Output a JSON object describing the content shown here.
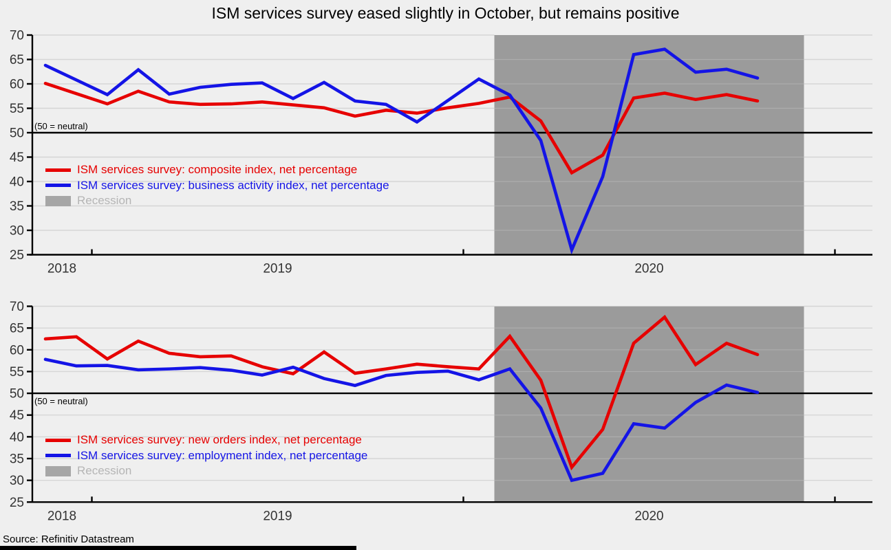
{
  "title": "ISM services survey eased slightly in October, but remains positive",
  "source": "Source: Refinitiv Datastream",
  "colors": {
    "red": "#e60000",
    "blue": "#1414e6",
    "recession_band": "#9b9b9b",
    "recession_swatch": "#a6a6a6",
    "recession_text": "#b5b5b5",
    "background": "#efefef",
    "grid": "#d6d6d6",
    "grid_in_band": "#adadad",
    "axis": "#000000",
    "tick_text": "#333333"
  },
  "chart_data": [
    {
      "type": "line",
      "title": "",
      "neutral_note": "(50 = neutral)",
      "recession_label": "Recession",
      "x": [
        "Nov 2018",
        "Dec 2018",
        "Jan 2019",
        "Feb 2019",
        "Mar 2019",
        "Apr 2019",
        "May 2019",
        "Jun 2019",
        "Jul 2019",
        "Aug 2019",
        "Sep 2019",
        "Oct 2019",
        "Nov 2019",
        "Dec 2019",
        "Jan 2020",
        "Feb 2020",
        "Mar 2020",
        "Apr 2020",
        "May 2020",
        "Jun 2020",
        "Jul 2020",
        "Aug 2020",
        "Sep 2020",
        "Oct 2020"
      ],
      "x_year_labels": [
        "2018",
        "2019",
        "2020"
      ],
      "yticks": [
        25,
        30,
        35,
        40,
        45,
        50,
        55,
        60,
        65,
        70
      ],
      "ylim": [
        25,
        70
      ],
      "grid": true,
      "legend_position": "upper-left-inside",
      "recession_span": [
        "Feb 2020",
        "Nov 2020"
      ],
      "series": [
        {
          "name": "ISM services survey: composite index, net percentage",
          "color_key": "red",
          "values": [
            60.1,
            58.0,
            55.9,
            58.5,
            56.3,
            55.8,
            55.9,
            56.3,
            55.7,
            55.1,
            53.4,
            54.6,
            54.0,
            55.1,
            56.0,
            57.3,
            52.4,
            41.8,
            45.4,
            57.1,
            58.1,
            56.8,
            57.8,
            56.5
          ]
        },
        {
          "name": "ISM services survey: business activity index, net percentage",
          "color_key": "blue",
          "values": [
            63.8,
            60.8,
            57.8,
            62.9,
            57.9,
            59.3,
            59.9,
            60.2,
            57.0,
            60.3,
            56.5,
            55.8,
            52.2,
            56.6,
            61.0,
            57.7,
            48.4,
            26.0,
            41.0,
            66.0,
            67.1,
            62.4,
            63.0,
            61.2
          ]
        }
      ]
    },
    {
      "type": "line",
      "title": "",
      "neutral_note": "(50 = neutral)",
      "recession_label": "Recession",
      "x": [
        "Nov 2018",
        "Dec 2018",
        "Jan 2019",
        "Feb 2019",
        "Mar 2019",
        "Apr 2019",
        "May 2019",
        "Jun 2019",
        "Jul 2019",
        "Aug 2019",
        "Sep 2019",
        "Oct 2019",
        "Nov 2019",
        "Dec 2019",
        "Jan 2020",
        "Feb 2020",
        "Mar 2020",
        "Apr 2020",
        "May 2020",
        "Jun 2020",
        "Jul 2020",
        "Aug 2020",
        "Sep 2020",
        "Oct 2020"
      ],
      "x_year_labels": [
        "2018",
        "2019",
        "2020"
      ],
      "yticks": [
        25,
        30,
        35,
        40,
        45,
        50,
        55,
        60,
        65,
        70
      ],
      "ylim": [
        25,
        70
      ],
      "grid": true,
      "legend_position": "upper-left-inside",
      "recession_span": [
        "Feb 2020",
        "Nov 2020"
      ],
      "series": [
        {
          "name": "ISM services survey: new orders index, net percentage",
          "color_key": "red",
          "values": [
            62.5,
            63.0,
            57.9,
            62.0,
            59.2,
            58.4,
            58.6,
            56.1,
            54.5,
            59.5,
            54.6,
            55.6,
            56.7,
            56.1,
            55.6,
            63.1,
            53.0,
            33.0,
            41.7,
            61.5,
            67.5,
            56.6,
            61.5,
            58.9
          ]
        },
        {
          "name": "ISM services survey: employment index, net percentage",
          "color_key": "blue",
          "values": [
            57.8,
            56.3,
            56.4,
            55.4,
            55.6,
            55.9,
            55.3,
            54.2,
            56.0,
            53.4,
            51.8,
            54.1,
            54.8,
            55.1,
            53.1,
            55.6,
            46.6,
            30.0,
            31.6,
            43.0,
            42.0,
            47.9,
            51.9,
            50.2
          ]
        }
      ]
    }
  ]
}
